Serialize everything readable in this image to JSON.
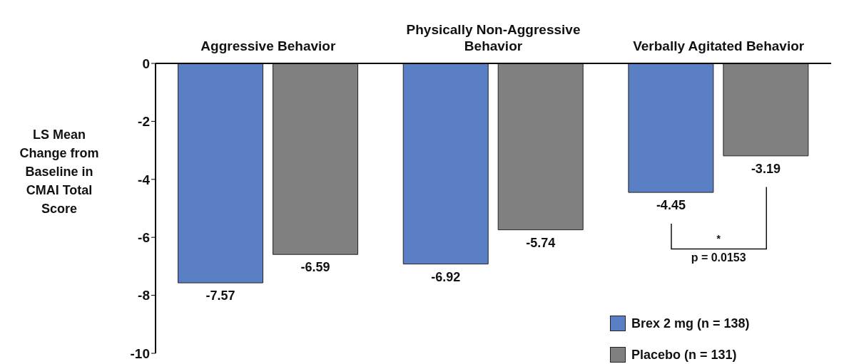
{
  "chart_data": {
    "type": "bar",
    "ylabel": "LS Mean Change from Baseline in CMAI Total Score",
    "categories": [
      "Aggressive Behavior",
      "Physically Non-Aggressive Behavior",
      "Verbally Agitated Behavior"
    ],
    "series": [
      {
        "name": "Brex 2 mg (n = 138)",
        "color": "#5b7fc4",
        "values": [
          -7.57,
          -6.92,
          -4.45
        ]
      },
      {
        "name": "Placebo (n = 131)",
        "color": "#808080",
        "values": [
          -6.59,
          -5.74,
          -3.19
        ]
      }
    ],
    "ylim": [
      -10,
      0
    ],
    "yticks": [
      0,
      -2,
      -4,
      -6,
      -8,
      -10
    ],
    "legend": "bottom right",
    "data_labels": true,
    "annotations": [
      "*",
      "p = 0.0153"
    ]
  }
}
